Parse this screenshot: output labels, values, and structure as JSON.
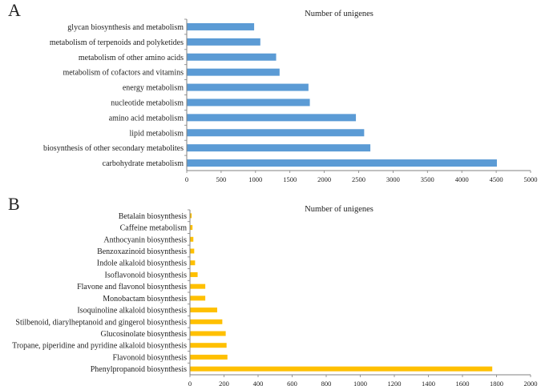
{
  "colors": {
    "panel_a_bar": "#5B9BD5",
    "panel_b_bar": "#FFC000",
    "axis": "#808080"
  },
  "chart_data": [
    {
      "type": "bar",
      "orientation": "horizontal",
      "panel_label": "A",
      "title": "Number of unigenes",
      "xlabel": "",
      "ylabel": "",
      "categories": [
        "glycan biosynthesis and metabolism",
        "metabolism of terpenoids and polyketides",
        "metabolism of other amino acids",
        "metabolism of cofactors and vitamins",
        "energy metabolism",
        "nucleotide metabolism",
        "amino acid metabolism",
        "lipid metabolism",
        "biosynthesis of other secondary metabolites",
        "carbohydrate metabolism"
      ],
      "values": [
        980,
        1070,
        1300,
        1350,
        1770,
        1790,
        2460,
        2580,
        2670,
        4510
      ],
      "xlim": [
        0,
        5000
      ],
      "ticks": [
        "0",
        "500",
        "1000",
        "1500",
        "2000",
        "2500",
        "3000",
        "3500",
        "4000",
        "4500",
        "5000"
      ],
      "grid": false
    },
    {
      "type": "bar",
      "orientation": "horizontal",
      "panel_label": "B",
      "title": "Number of unigenes",
      "xlabel": "",
      "ylabel": "",
      "categories": [
        "Betalain biosynthesis",
        "Caffeine metabolism",
        "Anthocyanin biosynthesis",
        "Benzoxazinoid biosynthesis",
        "Indole alkaloid biosynthesis",
        "Isoflavonoid biosynthesis",
        "Flavone and flavonol biosynthesis",
        "Monobactam biosynthesis",
        "Isoquinoline alkaloid biosynthesis",
        "Stilbenoid, diarylheptanoid and gingerol biosynthesis",
        "Glucosinolate biosynthesis",
        "Tropane, piperidine and pyridine alkaloid biosynthesis",
        "Flavonoid biosynthesis",
        "Phenylpropanoid biosynthesis"
      ],
      "values": [
        10,
        15,
        20,
        25,
        30,
        45,
        90,
        90,
        160,
        190,
        210,
        215,
        220,
        1775
      ],
      "xlim": [
        0,
        2000
      ],
      "ticks": [
        "0",
        "200",
        "400",
        "600",
        "800",
        "1000",
        "1200",
        "1400",
        "1600",
        "1800",
        "2000"
      ],
      "grid": false
    }
  ]
}
